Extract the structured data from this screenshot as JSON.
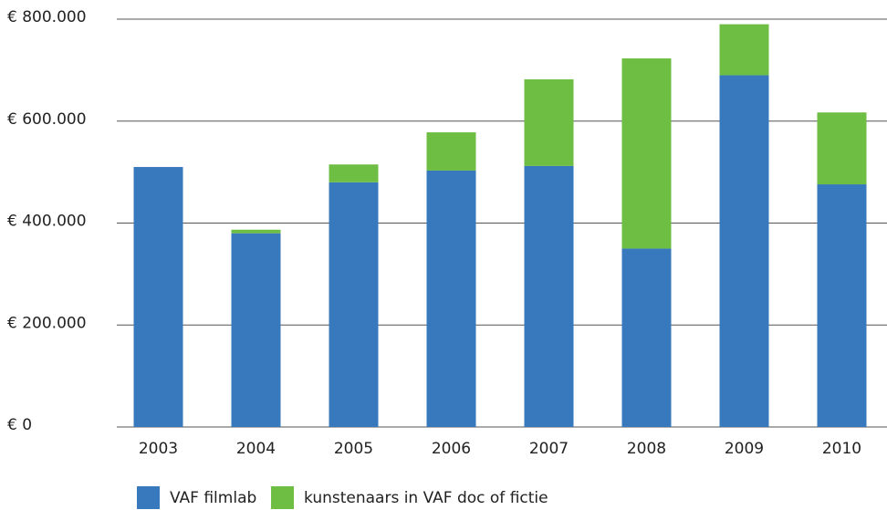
{
  "chart_data": {
    "type": "stacked_bar",
    "categories": [
      "2003",
      "2004",
      "2005",
      "2006",
      "2007",
      "2008",
      "2009",
      "2010"
    ],
    "series": [
      {
        "name": "VAF filmlab",
        "color": "#3878bd",
        "values": [
          510000,
          380000,
          480000,
          503000,
          512000,
          350000,
          690000,
          476000
        ]
      },
      {
        "name": "kunstenaars in VAF doc of fictie",
        "color": "#6fbe44",
        "values": [
          0,
          7000,
          35000,
          75000,
          170000,
          373000,
          100000,
          141000
        ]
      }
    ],
    "ylim": [
      0,
      800000
    ],
    "yticks": [
      {
        "value": 0,
        "label": "€ 0"
      },
      {
        "value": 200000,
        "label": "€ 200.000"
      },
      {
        "value": 400000,
        "label": "€ 400.000"
      },
      {
        "value": 600000,
        "label": "€ 600.000"
      },
      {
        "value": 800000,
        "label": "€ 800.000"
      }
    ],
    "grid": true,
    "legend": "bottom"
  }
}
